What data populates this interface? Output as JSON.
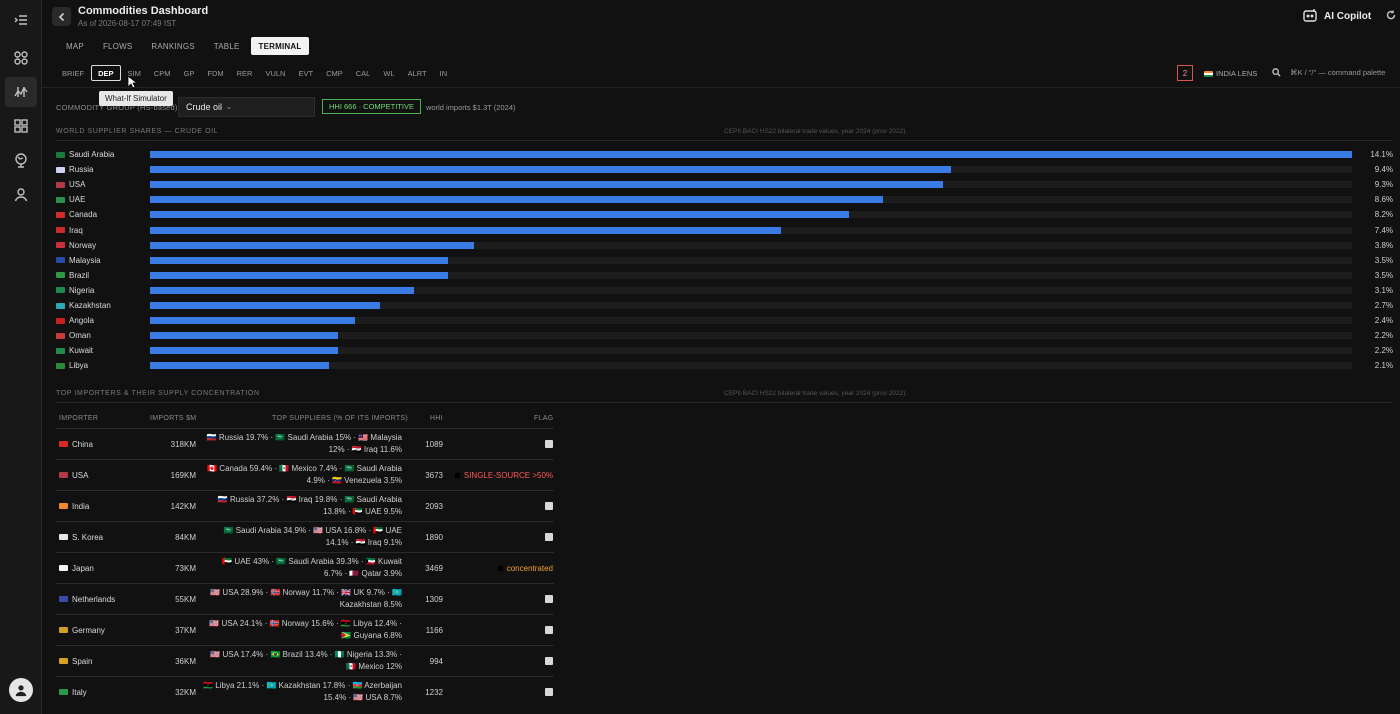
{
  "header": {
    "title": "Commodities Dashboard",
    "as_of": "As of 2026-08-17 07:49 IST",
    "copilot_label": "AI Copilot"
  },
  "tabs": [
    "MAP",
    "FLOWS",
    "RANKINGS",
    "TABLE",
    "TERMINAL"
  ],
  "active_tab": "TERMINAL",
  "subtabs": [
    "BRIEF",
    "DEP",
    "SIM",
    "CPM",
    "GP",
    "FDM",
    "RER",
    "VULN",
    "EVT",
    "CMP",
    "CAL",
    "WL",
    "ALRT",
    "IN"
  ],
  "active_subtab": "DEP",
  "tooltip": "What-If Simulator",
  "right_tools": {
    "alert_count": "2",
    "lens_label": "INDIA LENS",
    "command_hint": "⌘K / \"/\" — command palette"
  },
  "controls": {
    "group_label": "COMMODITY GROUP (HS-based)",
    "commodity": "Crude oil",
    "hhi_badge": "HHI 666 · COMPETITIVE",
    "imports_note": "world imports $1.3T (2024)"
  },
  "suppliers_section": {
    "title": "WORLD SUPPLIER SHARES — CRUDE OIL",
    "source": "CEPII BACI HS22 bilateral trade values, year 2024 (prov 2022)."
  },
  "chart_data": {
    "type": "bar",
    "orientation": "horizontal",
    "categories": [
      "Saudi Arabia",
      "Russia",
      "USA",
      "UAE",
      "Canada",
      "Iraq",
      "Norway",
      "Malaysia",
      "Brazil",
      "Nigeria",
      "Kazakhstan",
      "Angola",
      "Oman",
      "Kuwait",
      "Libya"
    ],
    "values": [
      14.1,
      9.4,
      9.3,
      8.6,
      8.2,
      7.4,
      3.8,
      3.5,
      3.5,
      3.1,
      2.7,
      2.4,
      2.2,
      2.2,
      2.1
    ],
    "labels": [
      "14.1%",
      "9.4%",
      "9.3%",
      "8.6%",
      "8.2%",
      "7.4%",
      "3.8%",
      "3.5%",
      "3.5%",
      "3.1%",
      "2.7%",
      "2.4%",
      "2.2%",
      "2.2%",
      "2.1%"
    ],
    "xlim": [
      0,
      14.1
    ],
    "bar_color": "#3b7be6"
  },
  "flag_colors": {
    "Saudi Arabia": "#1a7a3c",
    "Russia": "#d0d0f0",
    "USA": "#b03a48",
    "UAE": "#2f8f4e",
    "Canada": "#d62b2b",
    "Iraq": "#c92a2a",
    "Norway": "#c8303a",
    "Malaysia": "#2a4aa8",
    "Brazil": "#2e9a45",
    "Nigeria": "#1f8a4c",
    "Kazakhstan": "#2ba7b7",
    "Angola": "#c82020",
    "Oman": "#c83a3a",
    "Kuwait": "#1f8a4c",
    "Libya": "#2a8a3a",
    "China": "#d82a20",
    "India": "#f08a2a",
    "S. Korea": "#e6e6e6",
    "Japan": "#f2f2f2",
    "Netherlands": "#3a4aa8",
    "Germany": "#d0a020",
    "Spain": "#d8a020",
    "Italy": "#2a9a4a"
  },
  "importers_section": {
    "title": "TOP IMPORTERS & THEIR SUPPLY CONCENTRATION",
    "source": "CEPII BACI HS22 bilateral trade values, year 2024 (prov 2022)."
  },
  "table": {
    "columns": [
      "IMPORTER",
      "IMPORTS $M",
      "TOP SUPPLIERS (% OF ITS IMPORTS)",
      "HHI",
      "FLAG"
    ],
    "rows": [
      {
        "importer": "China",
        "imports": "318KM",
        "suppliers": "🇷🇺 Russia 19.7% · 🇸🇦 Saudi Arabia 15% · 🇲🇾 Malaysia 12% · 🇮🇶 Iraq 11.6%",
        "hhi": "1089",
        "flag": ""
      },
      {
        "importer": "USA",
        "imports": "169KM",
        "suppliers": "🇨🇦 Canada 59.4% · 🇲🇽 Mexico 7.4% · 🇸🇦 Saudi Arabia 4.9% · 🇻🇪 Venezuela 3.5%",
        "hhi": "3673",
        "flag": "SINGLE-SOURCE >50%",
        "flag_type": "red"
      },
      {
        "importer": "India",
        "imports": "142KM",
        "suppliers": "🇷🇺 Russia 37.2% · 🇮🇶 Iraq 19.8% · 🇸🇦 Saudi Arabia 13.8% · 🇦🇪 UAE 9.5%",
        "hhi": "2093",
        "flag": ""
      },
      {
        "importer": "S. Korea",
        "imports": "84KM",
        "suppliers": "🇸🇦 Saudi Arabia 34.9% · 🇺🇸 USA 16.8% · 🇦🇪 UAE 14.1% · 🇮🇶 Iraq 9.1%",
        "hhi": "1890",
        "flag": ""
      },
      {
        "importer": "Japan",
        "imports": "73KM",
        "suppliers": "🇦🇪 UAE 43% · 🇸🇦 Saudi Arabia 39.3% · 🇰🇼 Kuwait 6.7% · 🇶🇦 Qatar 3.9%",
        "hhi": "3469",
        "flag": "concentrated",
        "flag_type": "amber"
      },
      {
        "importer": "Netherlands",
        "imports": "55KM",
        "suppliers": "🇺🇸 USA 28.9% · 🇳🇴 Norway 11.7% · 🇬🇧 UK 9.7% · 🇰🇿 Kazakhstan 8.5%",
        "hhi": "1309",
        "flag": ""
      },
      {
        "importer": "Germany",
        "imports": "37KM",
        "suppliers": "🇺🇸 USA 24.1% · 🇳🇴 Norway 15.6% · 🇱🇾 Libya 12.4% · 🇬🇾 Guyana 6.8%",
        "hhi": "1166",
        "flag": ""
      },
      {
        "importer": "Spain",
        "imports": "36KM",
        "suppliers": "🇺🇸 USA 17.4% · 🇧🇷 Brazil 13.4% · 🇳🇬 Nigeria 13.3% · 🇲🇽 Mexico 12%",
        "hhi": "994",
        "flag": ""
      },
      {
        "importer": "Italy",
        "imports": "32KM",
        "suppliers": "🇱🇾 Libya 21.1% · 🇰🇿 Kazakhstan 17.8% · 🇦🇿 Azerbaijan 15.4% · 🇺🇸 USA 8.7%",
        "hhi": "1232",
        "flag": ""
      }
    ]
  }
}
